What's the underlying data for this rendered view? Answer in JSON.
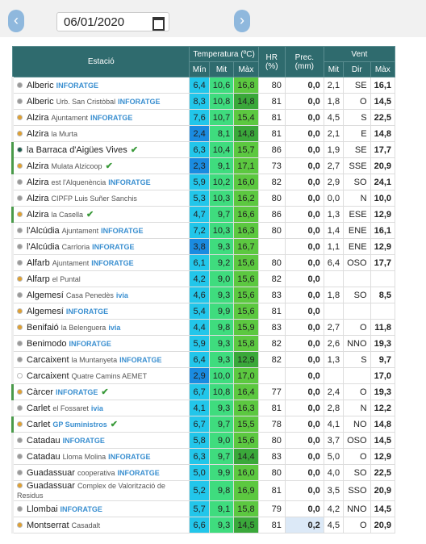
{
  "toolbar": {
    "date": "06/01/2020"
  },
  "table": {
    "headers": {
      "station": "Estació",
      "temp": "Temperatura (ºC)",
      "hr": "HR (%)",
      "prec": "Prec. (mm)",
      "wind": "Vent",
      "sub": [
        "Mín",
        "Mit",
        "Màx",
        "Mit",
        "Dir",
        "Màx"
      ]
    },
    "rows": [
      {
        "name": "Alberic",
        "badge": "INFORATGE",
        "dot": "#999",
        "cells": [
          "6,4",
          "10,6",
          "16,8",
          "80",
          "0,0",
          "2,1",
          "SE",
          "16,1"
        ]
      },
      {
        "name": "Alberic",
        "place": "Urb. San Cristòbal",
        "badge": "INFORATGE",
        "dot": "#999",
        "cells": [
          "8,3",
          "10,8",
          "14,8",
          "81",
          "0,0",
          "1,8",
          "O",
          "14,5"
        ]
      },
      {
        "name": "Alzira",
        "place": "Ajuntament",
        "badge": "INFORATGE",
        "dot": "#e0a030",
        "cells": [
          "7,6",
          "10,7",
          "15,4",
          "81",
          "0,0",
          "4,5",
          "S",
          "22,5"
        ]
      },
      {
        "name": "Alzira",
        "place": "la Murta",
        "dot": "#e0a030",
        "cells": [
          "2,4",
          "8,1",
          "14,8",
          "81",
          "0,0",
          "2,1",
          "E",
          "14,8"
        ]
      },
      {
        "name": "la Barraca d'Aigües Vives",
        "check": true,
        "dot": "#1f5f4f",
        "cells": [
          "6,3",
          "10,4",
          "15,7",
          "86",
          "0,0",
          "1,9",
          "SE",
          "17,7"
        ]
      },
      {
        "name": "Alzira",
        "place": "Mulata Alzicoop",
        "check": true,
        "dot": "#e0a030",
        "cells": [
          "2,3",
          "9,1",
          "17,1",
          "73",
          "0,0",
          "2,7",
          "SSE",
          "20,9"
        ]
      },
      {
        "name": "Alzira",
        "place": "est l'Alquenència",
        "badge": "INFORATGE",
        "dot": "#999",
        "cells": [
          "5,9",
          "10,2",
          "16,0",
          "82",
          "0,0",
          "2,9",
          "SO",
          "24,1"
        ]
      },
      {
        "name": "Alzira",
        "place": "CIPFP Luis Suñer Sanchis",
        "dot": "#999",
        "cells": [
          "5,3",
          "10,3",
          "16,2",
          "80",
          "0,0",
          "0,0",
          "N",
          "10,0"
        ]
      },
      {
        "name": "Alzira",
        "place": "la Casella",
        "check": true,
        "dot": "#e0a030",
        "cells": [
          "4,7",
          "9,7",
          "16,6",
          "86",
          "0,0",
          "1,3",
          "ESE",
          "12,9"
        ]
      },
      {
        "name": "l'Alcúdia",
        "place": "Ajuntament",
        "badge": "INFORATGE",
        "dot": "#999",
        "cells": [
          "7,2",
          "10,3",
          "16,3",
          "80",
          "0,0",
          "1,4",
          "ENE",
          "16,1"
        ]
      },
      {
        "name": "l'Alcúdia",
        "place": "Carrloria",
        "badge": "INFORATGE",
        "dot": "#999",
        "cells": [
          "3,8",
          "9,3",
          "16,7",
          null,
          "0,0",
          "1,1",
          "ENE",
          "12,9"
        ]
      },
      {
        "name": "Alfarb",
        "place": "Ajuntament",
        "badge": "INFORATGE",
        "dot": "#999",
        "cells": [
          "6,1",
          "9,2",
          "15,6",
          "80",
          "0,0",
          "6,4",
          "OSO",
          "17,7"
        ]
      },
      {
        "name": "Alfarp",
        "place": "el Puntal",
        "dot": "#e0a030",
        "cells": [
          "4,2",
          "9,0",
          "15,6",
          "82",
          "0,0",
          null,
          null,
          null
        ]
      },
      {
        "name": "Algemesí",
        "place": "Casa Penedès",
        "badge": "ivia",
        "dot": "#999",
        "cells": [
          "4,6",
          "9,3",
          "15,6",
          "83",
          "0,0",
          "1,8",
          "SO",
          "8,5"
        ]
      },
      {
        "name": "Algemesí",
        "badge": "INFORATGE",
        "dot": "#e0a030",
        "cells": [
          "5,4",
          "9,9",
          "15,6",
          "81",
          "0,0",
          null,
          null,
          null
        ]
      },
      {
        "name": "Benifaió",
        "place": "la Belenguera",
        "badge": "ivia",
        "dot": "#e0a030",
        "cells": [
          "4,4",
          "9,8",
          "15,9",
          "83",
          "0,0",
          "2,7",
          "O",
          "11,8"
        ]
      },
      {
        "name": "Benimodo",
        "badge": "INFORATGE",
        "dot": "#999",
        "cells": [
          "5,9",
          "9,3",
          "15,8",
          "82",
          "0,0",
          "2,6",
          "NNO",
          "19,3"
        ]
      },
      {
        "name": "Carcaixent",
        "place": "la Muntanyeta",
        "badge": "INFORATGE",
        "dot": "#999",
        "cells": [
          "6,4",
          "9,3",
          "12,9",
          "82",
          "0,0",
          "1,3",
          "S",
          "9,7"
        ]
      },
      {
        "name": "Carcaixent",
        "place": "Quatre Camins AEMET",
        "dot": "#fff",
        "cells": [
          "2,9",
          "10,0",
          "17,0",
          null,
          "0,0",
          null,
          null,
          "17,0"
        ]
      },
      {
        "name": "Càrcer",
        "badge": "INFORATGE",
        "check": true,
        "dot": "#e0a030",
        "cells": [
          "6,7",
          "10,8",
          "16,4",
          "77",
          "0,0",
          "2,4",
          "O",
          "19,3"
        ]
      },
      {
        "name": "Carlet",
        "place": "el Fossaret",
        "badge": "ivia",
        "dot": "#999",
        "cells": [
          "4,1",
          "9,3",
          "16,3",
          "81",
          "0,0",
          "2,8",
          "N",
          "12,2"
        ]
      },
      {
        "name": "Carlet",
        "badge": "GP Suministros",
        "check": true,
        "dot": "#e0a030",
        "cells": [
          "6,7",
          "9,7",
          "15,5",
          "78",
          "0,0",
          "4,1",
          "NO",
          "14,8"
        ]
      },
      {
        "name": "Catadau",
        "badge": "INFORATGE",
        "dot": "#999",
        "cells": [
          "5,8",
          "9,0",
          "15,6",
          "80",
          "0,0",
          "3,7",
          "OSO",
          "14,5"
        ]
      },
      {
        "name": "Catadau",
        "place": "Lloma Molina",
        "badge": "INFORATGE",
        "dot": "#999",
        "cells": [
          "6,3",
          "9,7",
          "14,4",
          "83",
          "0,0",
          "5,0",
          "O",
          "12,9"
        ]
      },
      {
        "name": "Guadassuar",
        "place": "cooperativa",
        "badge": "INFORATGE",
        "dot": "#999",
        "cells": [
          "5,0",
          "9,9",
          "16,0",
          "80",
          "0,0",
          "4,0",
          "SO",
          "22,5"
        ]
      },
      {
        "name": "Guadassuar",
        "place": "Complex de Valorització de Residus",
        "dot": "#e0a030",
        "cells": [
          "5,2",
          "9,8",
          "16,9",
          "81",
          "0,0",
          "3,5",
          "SSO",
          "20,9"
        ]
      },
      {
        "name": "Llombai",
        "badge": "INFORATGE",
        "dot": "#999",
        "cells": [
          "5,7",
          "9,1",
          "15,8",
          "79",
          "0,0",
          "4,2",
          "NNO",
          "14,5"
        ]
      },
      {
        "name": "Montserrat",
        "place": "Casadalt",
        "dot": "#e0a030",
        "cells": [
          "6,6",
          "9,3",
          "14,5",
          "81",
          "0,2",
          "4,5",
          "O",
          "20,9"
        ]
      }
    ]
  }
}
